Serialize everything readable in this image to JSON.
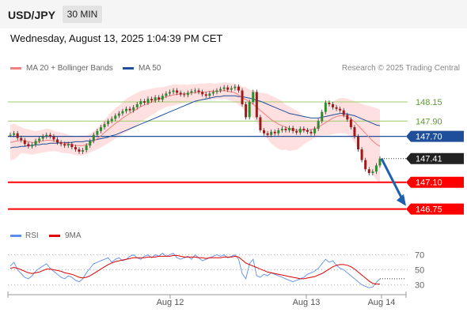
{
  "header": {
    "pair": "USD/JPY",
    "timeframe": "30 MIN"
  },
  "datetime": "Wednesday, August 13, 2025 1:04:39 PM CET",
  "legend": {
    "ma20": "MA 20 + Bollinger Bands",
    "ma50": "MA 50",
    "rsi": "RSI",
    "ma9": "9MA",
    "copyright": "Research © 2025 Trading Central"
  },
  "colors": {
    "ma20": "#f08080",
    "bollinger": "#ffd6d6",
    "ma50": "#1f4e9a",
    "up": "#2e8b2e",
    "down": "#a01818",
    "support": "#ff0000",
    "resistance": "#9ccc65",
    "pivot": "#1f4e9a",
    "rsi": "#5b8def",
    "rsi_ma": "#e00000"
  },
  "chart_data": [
    {
      "type": "candlestick",
      "title": "USD/JPY",
      "timeframe": "30 MIN",
      "x_labels": [
        "Aug 12",
        "Aug 13",
        "Aug 14"
      ],
      "ylim": [
        146.55,
        148.45
      ],
      "last_price": 147.41,
      "closes": [
        147.72,
        147.74,
        147.68,
        147.65,
        147.6,
        147.57,
        147.59,
        147.64,
        147.67,
        147.7,
        147.72,
        147.7,
        147.66,
        147.62,
        147.6,
        147.58,
        147.6,
        147.56,
        147.53,
        147.5,
        147.52,
        147.58,
        147.64,
        147.72,
        147.77,
        147.82,
        147.86,
        147.9,
        147.93,
        147.97,
        148.0,
        148.03,
        148.06,
        148.04,
        148.08,
        148.12,
        148.16,
        148.14,
        148.19,
        148.17,
        148.21,
        148.18,
        148.23,
        148.26,
        148.28,
        148.3,
        148.27,
        148.25,
        148.24,
        148.27,
        148.29,
        148.3,
        148.28,
        148.25,
        148.23,
        148.26,
        148.28,
        148.3,
        148.32,
        148.34,
        148.31,
        148.33,
        148.35,
        148.3,
        148.12,
        147.95,
        148.15,
        148.28,
        147.95,
        147.78,
        147.74,
        147.72,
        147.76,
        147.74,
        147.78,
        147.8,
        147.78,
        147.81,
        147.77,
        147.75,
        147.8,
        147.78,
        147.76,
        147.74,
        147.8,
        147.9,
        148.02,
        148.14,
        148.12,
        148.08,
        148.06,
        148.04,
        147.98,
        147.92,
        147.82,
        147.7,
        147.53,
        147.39,
        147.27,
        147.22,
        147.24,
        147.32,
        147.41
      ],
      "series": [
        {
          "name": "MA 20",
          "values": [
            147.62,
            147.63,
            147.64,
            147.65,
            147.64,
            147.63,
            147.62,
            147.62,
            147.63,
            147.64,
            147.65,
            147.65,
            147.64,
            147.63,
            147.62,
            147.61,
            147.6,
            147.59,
            147.58,
            147.58,
            147.58,
            147.59,
            147.61,
            147.64,
            147.67,
            147.71,
            147.75,
            147.79,
            147.83,
            147.87,
            147.9,
            147.94,
            147.97,
            148.0,
            148.03,
            148.06,
            148.09,
            148.11,
            148.13,
            148.15,
            148.17,
            148.19,
            148.2,
            148.22,
            148.23,
            148.24,
            148.25,
            148.25,
            148.26,
            148.26,
            148.27,
            148.27,
            148.28,
            148.28,
            148.28,
            148.29,
            148.29,
            148.29,
            148.29,
            148.3,
            148.29,
            148.28,
            148.27,
            148.24,
            148.21,
            148.18,
            148.15,
            148.12,
            148.08,
            148.04,
            148.0,
            147.96,
            147.92,
            147.89,
            147.86,
            147.84,
            147.82,
            147.8,
            147.79,
            147.78,
            147.78,
            147.78,
            147.78,
            147.79,
            147.8,
            147.82,
            147.85,
            147.88,
            147.91,
            147.94,
            147.96,
            147.97,
            147.97,
            147.96,
            147.93,
            147.89,
            147.84,
            147.79,
            147.74,
            147.69,
            147.64,
            147.6,
            147.57
          ]
        },
        {
          "name": "MA 50",
          "values": [
            147.55,
            147.56,
            147.56,
            147.57,
            147.57,
            147.58,
            147.58,
            147.59,
            147.59,
            147.6,
            147.6,
            147.61,
            147.61,
            147.61,
            147.62,
            147.62,
            147.62,
            147.62,
            147.63,
            147.63,
            147.63,
            147.64,
            147.64,
            147.65,
            147.66,
            147.67,
            147.68,
            147.69,
            147.71,
            147.72,
            147.74,
            147.76,
            147.78,
            147.8,
            147.82,
            147.84,
            147.86,
            147.88,
            147.9,
            147.92,
            147.94,
            147.96,
            147.98,
            148.0,
            148.02,
            148.04,
            148.06,
            148.08,
            148.1,
            148.12,
            148.14,
            148.16,
            148.17,
            148.18,
            148.19,
            148.2,
            148.21,
            148.22,
            148.22,
            148.23,
            148.23,
            148.23,
            148.23,
            148.22,
            148.22,
            148.21,
            148.2,
            148.19,
            148.17,
            148.16,
            148.14,
            148.12,
            148.1,
            148.08,
            148.06,
            148.04,
            148.02,
            148.0,
            147.99,
            147.98,
            147.97,
            147.96,
            147.95,
            147.94,
            147.94,
            147.94,
            147.95,
            147.96,
            147.97,
            147.98,
            147.99,
            148.0,
            148.0,
            147.99,
            147.98,
            147.97,
            147.95,
            147.93,
            147.91,
            147.89,
            147.87,
            147.85,
            147.84
          ]
        }
      ],
      "levels": [
        {
          "label": "148.15",
          "value": 148.15,
          "kind": "resistance"
        },
        {
          "label": "147.90",
          "value": 147.9,
          "kind": "resistance"
        },
        {
          "label": "147.70",
          "value": 147.7,
          "kind": "pivot"
        },
        {
          "label": "147.10",
          "value": 147.1,
          "kind": "support"
        },
        {
          "label": "146.75",
          "value": 146.75,
          "kind": "support"
        }
      ],
      "last_label": "147.41",
      "forecast": {
        "from": 147.41,
        "to": 146.75,
        "direction": "down"
      }
    },
    {
      "type": "line",
      "title": "RSI",
      "ylim": [
        20,
        80
      ],
      "ticks": [
        "70",
        "50",
        "30"
      ],
      "series": [
        {
          "name": "RSI",
          "values": [
            55,
            60,
            50,
            45,
            40,
            38,
            42,
            48,
            52,
            55,
            58,
            52,
            48,
            44,
            40,
            38,
            42,
            40,
            36,
            34,
            38,
            46,
            52,
            58,
            60,
            62,
            64,
            66,
            60,
            64,
            66,
            62,
            64,
            68,
            70,
            66,
            64,
            68,
            70,
            66,
            70,
            68,
            72,
            68,
            70,
            72,
            66,
            64,
            66,
            68,
            64,
            70,
            66,
            62,
            64,
            66,
            68,
            70,
            68,
            70,
            66,
            68,
            70,
            64,
            45,
            38,
            58,
            64,
            42,
            40,
            44,
            42,
            46,
            44,
            42,
            40,
            38,
            36,
            34,
            36,
            38,
            40,
            44,
            46,
            48,
            52,
            58,
            64,
            60,
            62,
            56,
            52,
            50,
            46,
            42,
            38,
            34,
            30,
            28,
            26,
            27,
            33,
            38
          ]
        },
        {
          "name": "9MA",
          "values": [
            52,
            53,
            52,
            50,
            48,
            46,
            45,
            46,
            47,
            49,
            51,
            51,
            50,
            49,
            48,
            46,
            45,
            44,
            42,
            40,
            39,
            40,
            42,
            45,
            48,
            51,
            54,
            57,
            59,
            61,
            62,
            63,
            64,
            65,
            66,
            66,
            66,
            66,
            67,
            67,
            67,
            68,
            68,
            68,
            68,
            69,
            69,
            68,
            67,
            67,
            67,
            67,
            66,
            66,
            65,
            66,
            66,
            66,
            66,
            67,
            67,
            67,
            68,
            67,
            63,
            59,
            57,
            55,
            53,
            51,
            49,
            47,
            46,
            45,
            44,
            43,
            42,
            41,
            40,
            39,
            38,
            38,
            39,
            40,
            41,
            43,
            45,
            48,
            51,
            54,
            56,
            57,
            57,
            56,
            54,
            51,
            47,
            43,
            39,
            35,
            32,
            31,
            31
          ]
        }
      ]
    }
  ]
}
